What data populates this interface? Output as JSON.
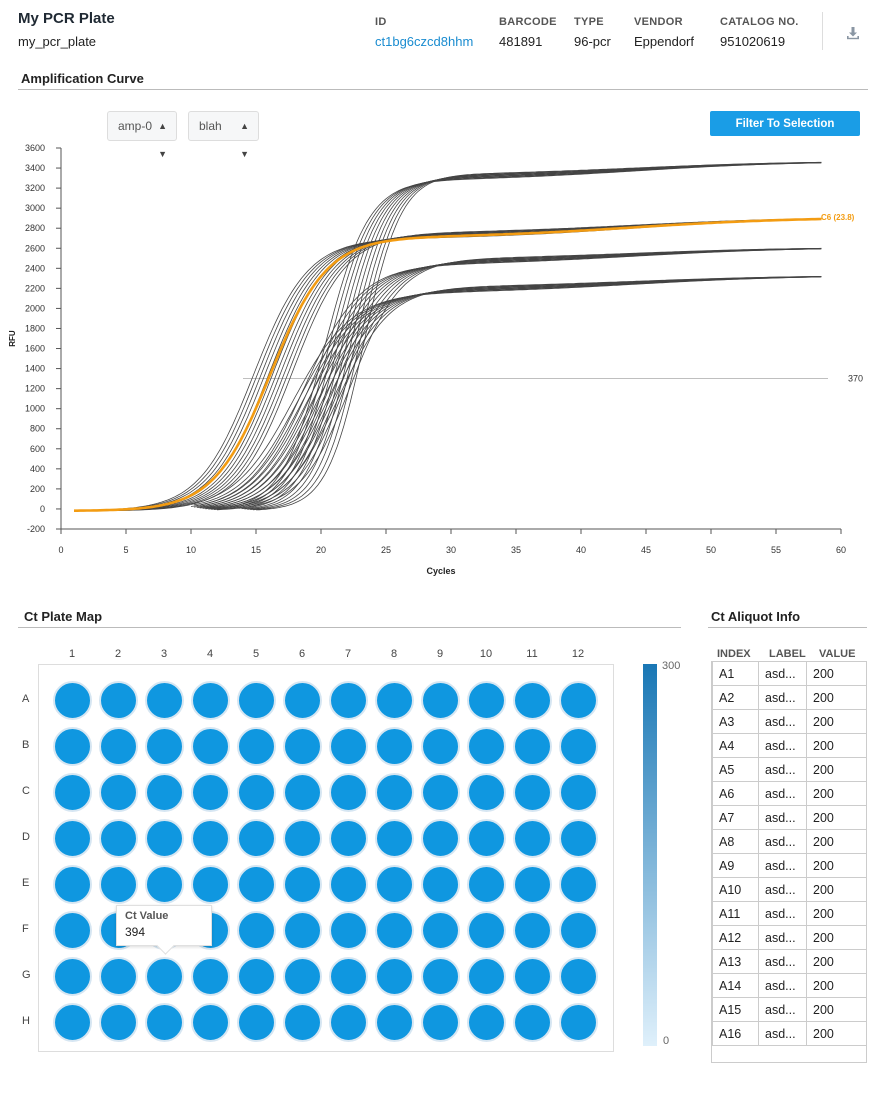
{
  "header": {
    "title": "My PCR Plate",
    "subtitle": "my_pcr_plate",
    "meta": [
      {
        "label": "ID",
        "value": "ct1bg6czcd8hhm"
      },
      {
        "label": "BARCODE",
        "value": "481891"
      },
      {
        "label": "TYPE",
        "value": "96-pcr"
      },
      {
        "label": "VENDOR",
        "value": "Eppendorf"
      },
      {
        "label": "CATALOG NO.",
        "value": "951020619"
      }
    ],
    "download_icon": "download-icon"
  },
  "amplification": {
    "section_title": "Amplification Curve",
    "amp_select": "amp-0",
    "label_select": "blah",
    "filter_button": "Filter To Selection"
  },
  "chart_data": {
    "type": "line",
    "title": "Amplification Curve",
    "xlabel": "Cycles",
    "ylabel": "RFU",
    "xlim": [
      0,
      60
    ],
    "ylim": [
      -200,
      3600
    ],
    "xticks": [
      0,
      5,
      10,
      15,
      20,
      25,
      30,
      35,
      40,
      45,
      50,
      55,
      60
    ],
    "yticks": [
      -200,
      0,
      200,
      400,
      600,
      800,
      1000,
      1200,
      1400,
      1600,
      1800,
      2000,
      2200,
      2400,
      2600,
      2800,
      3000,
      3200,
      3400,
      3600
    ],
    "threshold": {
      "value": 1300,
      "x_start": 14,
      "x_end": 59,
      "label": "370"
    },
    "highlight": {
      "name": "C6 (23.8)",
      "color": "#f39c12"
    },
    "groups": [
      {
        "plateau": 2720,
        "end": 2910,
        "mid": [
          14.8,
          17.8
        ],
        "k": [
          0.48,
          0.48
        ],
        "x_start": 1,
        "count": 11
      },
      {
        "plateau": 3300,
        "end": 3470,
        "mid": [
          20.3,
          23.3
        ],
        "k": [
          0.6,
          0.7
        ],
        "x_start": 13,
        "count": 10
      },
      {
        "plateau": 2460,
        "end": 2610,
        "mid": [
          18.7,
          22.3
        ],
        "k": [
          0.46,
          0.52
        ],
        "x_start": 10,
        "count": 10
      },
      {
        "plateau": 2180,
        "end": 2330,
        "mid": [
          17.8,
          21.3
        ],
        "k": [
          0.44,
          0.5
        ],
        "x_start": 10,
        "count": 10
      }
    ],
    "highlight_series": {
      "plateau": 2705,
      "end": 2910,
      "mid": 16.1,
      "k": 0.46,
      "x_start": 1
    },
    "x_end": 58.5,
    "series_color": "#444444"
  },
  "plate": {
    "section_title": "Ct Plate Map",
    "columns": [
      "1",
      "2",
      "3",
      "4",
      "5",
      "6",
      "7",
      "8",
      "9",
      "10",
      "11",
      "12"
    ],
    "rows": [
      "A",
      "B",
      "C",
      "D",
      "E",
      "F",
      "G",
      "H"
    ],
    "well_color": "#0f97e0",
    "legend": {
      "max": "300",
      "min": "0"
    },
    "tooltip": {
      "label": "Ct Value",
      "value": "394"
    }
  },
  "aliquot": {
    "section_title": "Ct Aliquot Info",
    "headers": [
      "INDEX",
      "LABEL",
      "VALUE"
    ],
    "rows": [
      [
        "A1",
        "asd...",
        "200"
      ],
      [
        "A2",
        "asd...",
        "200"
      ],
      [
        "A3",
        "asd...",
        "200"
      ],
      [
        "A4",
        "asd...",
        "200"
      ],
      [
        "A5",
        "asd...",
        "200"
      ],
      [
        "A6",
        "asd...",
        "200"
      ],
      [
        "A7",
        "asd...",
        "200"
      ],
      [
        "A8",
        "asd...",
        "200"
      ],
      [
        "A9",
        "asd...",
        "200"
      ],
      [
        "A10",
        "asd...",
        "200"
      ],
      [
        "A11",
        "asd...",
        "200"
      ],
      [
        "A12",
        "asd...",
        "200"
      ],
      [
        "A13",
        "asd...",
        "200"
      ],
      [
        "A14",
        "asd...",
        "200"
      ],
      [
        "A15",
        "asd...",
        "200"
      ],
      [
        "A16",
        "asd...",
        "200"
      ]
    ]
  }
}
